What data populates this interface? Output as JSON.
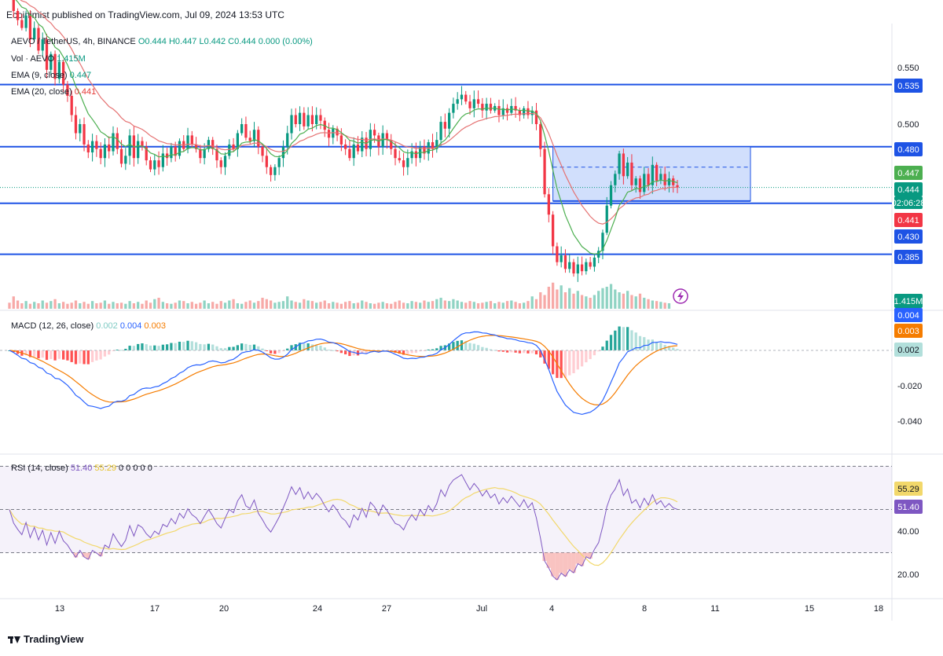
{
  "header": {
    "published": "Ecoinimist published on TradingView.com, Jul 09, 2024 13:53 UTC"
  },
  "legend": {
    "symbol": "AEVO / TetherUS, 4h, BINANCE",
    "ohlc": "O0.444  H0.447  L0.442  C0.444  0.000 (0.00%)",
    "vol_label": "Vol · AEVO",
    "vol_value": "1.415M",
    "ema9_label": "EMA (9, close)",
    "ema9_value": "0.447",
    "ema20_label": "EMA (20, close)",
    "ema20_value": "0.441",
    "macd_label": "MACD (12, 26, close)",
    "macd_hist": "0.002",
    "macd_line": "0.004",
    "macd_signal": "0.003",
    "rsi_label": "RSI (14, close)",
    "rsi_value": "51.40",
    "rsi_ma": "55.29",
    "rsi_extra": "0  0  0  0  0"
  },
  "colors": {
    "up": "#089981",
    "down": "#f23645",
    "ema9": "#4caf50",
    "ema20": "#e57373",
    "hline": "#1e53e5",
    "macd": "#2962ff",
    "signal": "#f57c00",
    "rsi": "#7e57c2",
    "rsi_ma": "#f2d86b",
    "rect_fill": "#c6d7fb"
  },
  "chart_data": [
    {
      "type": "candlestick",
      "title": "AEVO / TetherUS, 4h, BINANCE",
      "x_ticks": [
        "13",
        "17",
        "20",
        "24",
        "27",
        "Jul",
        "4",
        "8",
        "11",
        "15",
        "18"
      ],
      "y_ticks": [
        "0.550",
        "0.500"
      ],
      "ylim": [
        0.36,
        0.58
      ],
      "horizontal_levels": [
        "0.535",
        "0.480",
        "0.430",
        "0.385"
      ],
      "price_badges": [
        {
          "label": "0.535",
          "color": "#1e53e5"
        },
        {
          "label": "0.480",
          "color": "#1e53e5"
        },
        {
          "label": "0.447",
          "color": "#4caf50"
        },
        {
          "label": "0.444",
          "color": "#089981"
        },
        {
          "label": "02:06:28",
          "color": "#089981"
        },
        {
          "label": "0.441",
          "color": "#f23645"
        },
        {
          "label": "0.430",
          "color": "#1e53e5"
        },
        {
          "label": "0.385",
          "color": "#1e53e5"
        }
      ],
      "range_box": {
        "top": 0.48,
        "bottom": 0.432,
        "mid": 0.462,
        "from": 131,
        "to": 180
      },
      "closes": [
        0.615,
        0.6,
        0.592,
        0.585,
        0.596,
        0.575,
        0.585,
        0.565,
        0.575,
        0.548,
        0.562,
        0.54,
        0.555,
        0.535,
        0.525,
        0.508,
        0.492,
        0.5,
        0.482,
        0.475,
        0.485,
        0.478,
        0.47,
        0.482,
        0.476,
        0.492,
        0.478,
        0.465,
        0.472,
        0.49,
        0.47,
        0.485,
        0.48,
        0.468,
        0.46,
        0.468,
        0.462,
        0.474,
        0.47,
        0.48,
        0.472,
        0.485,
        0.478,
        0.49,
        0.482,
        0.478,
        0.47,
        0.478,
        0.486,
        0.478,
        0.468,
        0.462,
        0.472,
        0.482,
        0.478,
        0.492,
        0.5,
        0.488,
        0.485,
        0.495,
        0.48,
        0.472,
        0.462,
        0.455,
        0.462,
        0.47,
        0.48,
        0.492,
        0.508,
        0.5,
        0.51,
        0.498,
        0.508,
        0.5,
        0.508,
        0.503,
        0.495,
        0.488,
        0.496,
        0.49,
        0.482,
        0.478,
        0.47,
        0.482,
        0.476,
        0.488,
        0.478,
        0.495,
        0.49,
        0.48,
        0.492,
        0.486,
        0.478,
        0.47,
        0.468,
        0.462,
        0.47,
        0.476,
        0.47,
        0.48,
        0.474,
        0.484,
        0.478,
        0.486,
        0.502,
        0.496,
        0.51,
        0.518,
        0.522,
        0.526,
        0.52,
        0.514,
        0.522,
        0.518,
        0.512,
        0.518,
        0.512,
        0.516,
        0.508,
        0.514,
        0.51,
        0.516,
        0.512,
        0.508,
        0.514,
        0.508,
        0.512,
        0.5,
        0.478,
        0.438,
        0.42,
        0.392,
        0.378,
        0.384,
        0.372,
        0.378,
        0.368,
        0.376,
        0.37,
        0.378,
        0.374,
        0.382,
        0.388,
        0.404,
        0.428,
        0.446,
        0.456,
        0.474,
        0.454,
        0.466,
        0.446,
        0.452,
        0.44,
        0.456,
        0.446,
        0.464,
        0.45,
        0.456,
        0.446,
        0.452,
        0.446,
        0.444
      ],
      "volumes": [
        0.22,
        0.45,
        0.3,
        0.2,
        0.28,
        0.18,
        0.25,
        0.2,
        0.3,
        0.22,
        0.28,
        0.35,
        0.2,
        0.25,
        0.18,
        0.22,
        0.3,
        0.2,
        0.25,
        0.18,
        0.28,
        0.2,
        0.22,
        0.3,
        0.18,
        0.25,
        0.2,
        0.22,
        0.18,
        0.28,
        0.2,
        0.25,
        0.18,
        0.3,
        0.22,
        0.35,
        0.4,
        0.25,
        0.2,
        0.18,
        0.22,
        0.3,
        0.28,
        0.2,
        0.25,
        0.18,
        0.22,
        0.3,
        0.2,
        0.25,
        0.18,
        0.28,
        0.22,
        0.3,
        0.35,
        0.2,
        0.18,
        0.25,
        0.3,
        0.22,
        0.28,
        0.4,
        0.35,
        0.3,
        0.22,
        0.25,
        0.28,
        0.45,
        0.3,
        0.25,
        0.22,
        0.35,
        0.3,
        0.28,
        0.22,
        0.25,
        0.3,
        0.2,
        0.25,
        0.22,
        0.18,
        0.25,
        0.28,
        0.2,
        0.22,
        0.3,
        0.25,
        0.2,
        0.18,
        0.22,
        0.25,
        0.2,
        0.18,
        0.25,
        0.3,
        0.22,
        0.2,
        0.28,
        0.25,
        0.22,
        0.3,
        0.25,
        0.28,
        0.35,
        0.4,
        0.3,
        0.28,
        0.35,
        0.3,
        0.25,
        0.22,
        0.28,
        0.25,
        0.2,
        0.22,
        0.25,
        0.28,
        0.2,
        0.25,
        0.22,
        0.28,
        0.3,
        0.25,
        0.2,
        0.22,
        0.28,
        0.45,
        0.35,
        0.6,
        0.5,
        0.8,
        0.95,
        0.7,
        0.85,
        0.6,
        0.75,
        0.55,
        0.65,
        0.5,
        0.45,
        0.4,
        0.5,
        0.65,
        0.75,
        0.8,
        0.9,
        0.7,
        0.6,
        0.55,
        0.65,
        0.5,
        0.45,
        0.55,
        0.4,
        0.35,
        0.3,
        0.28,
        0.25,
        0.22,
        0.2
      ]
    },
    {
      "type": "line",
      "title": "MACD (12, 26, close)",
      "y_ticks": [
        "-0.020",
        "-0.040"
      ],
      "ylim": [
        -0.05,
        0.01
      ],
      "value_badges": [
        {
          "label": "0.004",
          "color": "#2962ff"
        },
        {
          "label": "0.003",
          "color": "#f57c00"
        },
        {
          "label": "0.002",
          "color": "#b2dfdb"
        }
      ]
    },
    {
      "type": "line",
      "title": "RSI (14, close)",
      "y_ticks": [
        "40.00",
        "20.00"
      ],
      "ylim": [
        14,
        80
      ],
      "bands": [
        70,
        50,
        30
      ],
      "value_badges": [
        {
          "label": "55.29",
          "color": "#f2d86b"
        },
        {
          "label": "51.40",
          "color": "#7e57c2"
        }
      ]
    }
  ]
}
